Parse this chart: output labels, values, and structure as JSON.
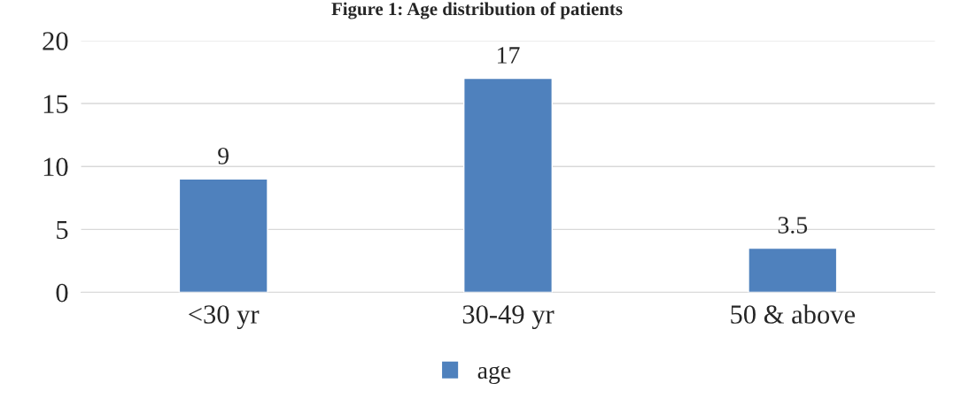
{
  "chart_data": {
    "type": "bar",
    "title": "Figure 1: Age distribution of patients",
    "categories": [
      "<30 yr",
      "30-49 yr",
      "50 & above"
    ],
    "series": [
      {
        "name": "age",
        "color": "#4f81bd",
        "values": [
          9,
          17,
          3.5
        ]
      }
    ],
    "ylim": [
      0,
      20
    ],
    "yticks": [
      0,
      5,
      10,
      15,
      20
    ],
    "grid": "y",
    "legend": "bottom",
    "data_labels": true
  }
}
